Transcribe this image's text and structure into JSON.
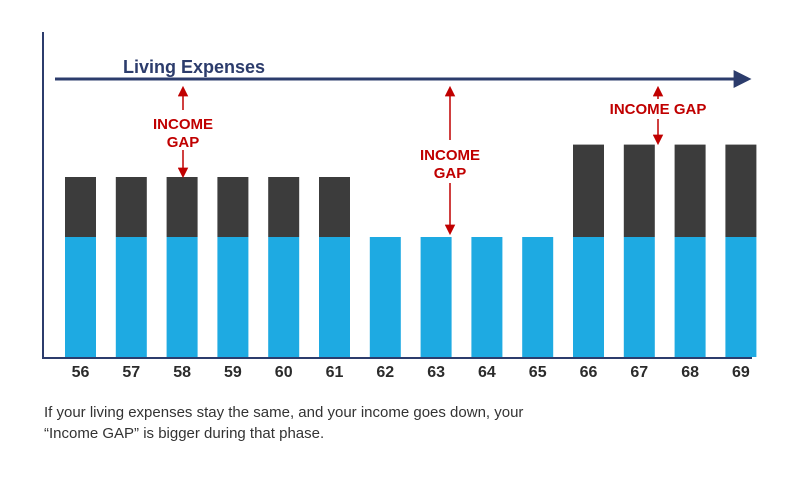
{
  "chart_data": {
    "type": "bar",
    "categories": [
      "56",
      "57",
      "58",
      "59",
      "60",
      "61",
      "62",
      "63",
      "64",
      "65",
      "66",
      "67",
      "68",
      "69"
    ],
    "series": [
      {
        "key": "income",
        "values": [
          1.0,
          1.0,
          1.0,
          1.0,
          1.0,
          1.0,
          1.0,
          1.0,
          1.0,
          1.0,
          1.0,
          1.0,
          1.0,
          1.0
        ]
      },
      {
        "key": "gap",
        "values": [
          0.5,
          0.5,
          0.5,
          0.5,
          0.5,
          0.5,
          0,
          0,
          0,
          0,
          0.77,
          0.77,
          0.77,
          0.77
        ]
      }
    ],
    "ylim": [
      0,
      2.5
    ],
    "stacked": true,
    "grid": false,
    "line_label": "Living Expenses",
    "annotations": {
      "gap_1_line1": "INCOME",
      "gap_1_line2": "GAP",
      "gap_2_line1": "INCOME",
      "gap_2_line2": "GAP",
      "gap_3": "INCOME GAP"
    }
  },
  "colors": {
    "income": "#1eaae2",
    "gap": "#3c3c3c",
    "expense_line": "#2c3c6c",
    "annotation": "#c00000",
    "axis": "#2c3c6c"
  },
  "caption": "If your living expenses stay the same, and your income goes down, your “Income GAP” is bigger during that phase."
}
